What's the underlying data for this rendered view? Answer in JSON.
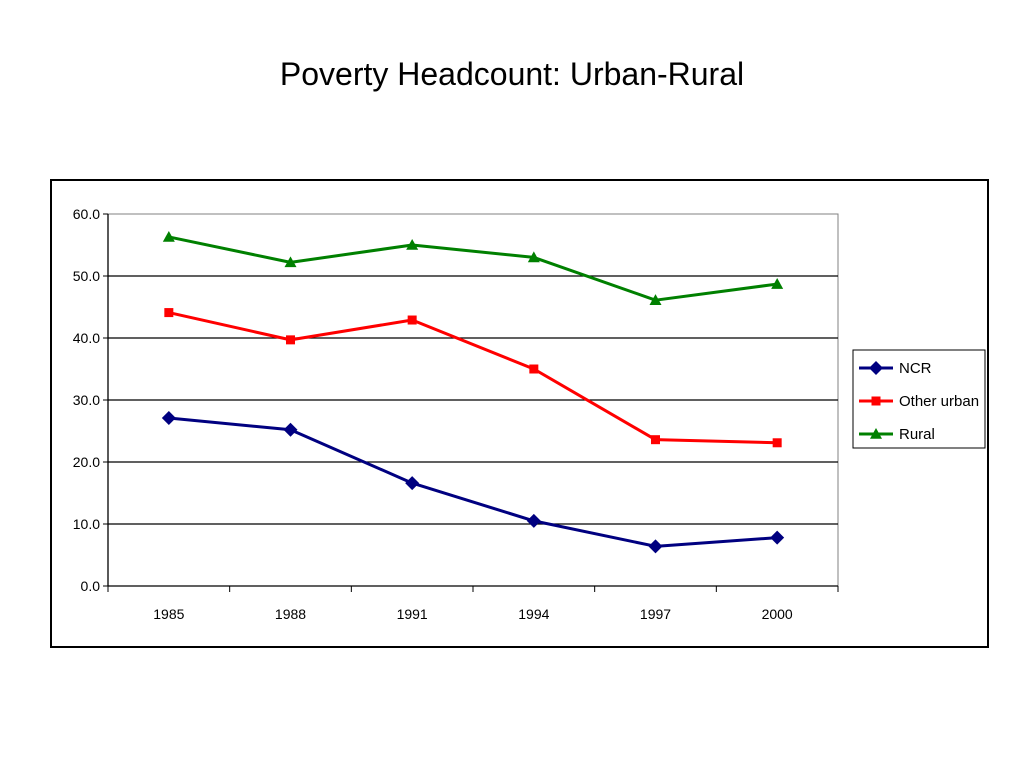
{
  "slide": {
    "title": "Poverty Headcount: Urban-Rural"
  },
  "chart_data": {
    "type": "line",
    "title": "",
    "xlabel": "",
    "ylabel": "",
    "categories": [
      "1985",
      "1988",
      "1991",
      "1994",
      "1997",
      "2000"
    ],
    "ylim": [
      0,
      60
    ],
    "yticks": [
      0,
      10,
      20,
      30,
      40,
      50,
      60
    ],
    "ytick_labels": [
      "0.0",
      "10.0",
      "20.0",
      "30.0",
      "40.0",
      "50.0",
      "60.0"
    ],
    "grid": true,
    "legend_position": "right",
    "series": [
      {
        "name": "NCR",
        "color": "#000080",
        "marker": "diamond",
        "values": [
          27.1,
          25.2,
          16.6,
          10.5,
          6.4,
          7.8
        ]
      },
      {
        "name": "Other urban",
        "color": "#ff0000",
        "marker": "square",
        "values": [
          44.1,
          39.7,
          42.9,
          35.0,
          23.6,
          23.1
        ]
      },
      {
        "name": "Rural",
        "color": "#008000",
        "marker": "triangle",
        "values": [
          56.3,
          52.2,
          55.0,
          53.0,
          46.1,
          48.7
        ]
      }
    ]
  }
}
